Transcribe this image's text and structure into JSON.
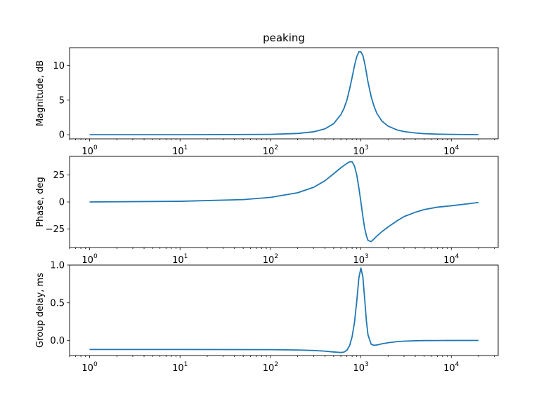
{
  "chart_data": [
    {
      "type": "line",
      "title": "peaking",
      "xlabel": "",
      "ylabel": "Magnitude, dB",
      "xscale": "log",
      "xlim": [
        0.6,
        33000
      ],
      "xticks": [
        1,
        10,
        100,
        1000,
        10000
      ],
      "xtick_labels": [
        {
          "base": "10",
          "exp": "0"
        },
        {
          "base": "10",
          "exp": "1"
        },
        {
          "base": "10",
          "exp": "2"
        },
        {
          "base": "10",
          "exp": "3"
        },
        {
          "base": "10",
          "exp": "4"
        }
      ],
      "ylim": [
        -0.6,
        12.6
      ],
      "yticks": [
        0,
        5,
        10
      ],
      "ytick_labels": [
        "0",
        "5",
        "10"
      ],
      "grid": false,
      "color": "#1f77b4",
      "series": [
        {
          "x": [
            1,
            10,
            100,
            200,
            300,
            400,
            500,
            600,
            650,
            700,
            750,
            800,
            850,
            900,
            950,
            1000,
            1050,
            1100,
            1150,
            1200,
            1300,
            1400,
            1500,
            1700,
            2000,
            2500,
            3000,
            4000,
            5000,
            7000,
            10000,
            15000,
            20000
          ],
          "y": [
            0,
            0,
            0.05,
            0.18,
            0.42,
            0.85,
            1.6,
            2.9,
            3.8,
            5.0,
            6.6,
            8.3,
            10.0,
            11.3,
            12.0,
            12.0,
            11.5,
            10.4,
            9.0,
            7.6,
            5.5,
            4.1,
            3.1,
            2.0,
            1.25,
            0.7,
            0.45,
            0.25,
            0.15,
            0.08,
            0.05,
            0.02,
            0.01
          ]
        }
      ]
    },
    {
      "type": "line",
      "title": "",
      "xlabel": "",
      "ylabel": "Phase, deg",
      "xscale": "log",
      "xlim": [
        0.6,
        33000
      ],
      "xticks": [
        1,
        10,
        100,
        1000,
        10000
      ],
      "xtick_labels": [
        {
          "base": "10",
          "exp": "0"
        },
        {
          "base": "10",
          "exp": "1"
        },
        {
          "base": "10",
          "exp": "2"
        },
        {
          "base": "10",
          "exp": "3"
        },
        {
          "base": "10",
          "exp": "4"
        }
      ],
      "ylim": [
        -42,
        42
      ],
      "yticks": [
        -25,
        0,
        25
      ],
      "ytick_labels": [
        "−25",
        "0",
        "25"
      ],
      "grid": false,
      "color": "#1f77b4",
      "series": [
        {
          "x": [
            1,
            10,
            50,
            100,
            200,
            300,
            400,
            500,
            600,
            700,
            750,
            800,
            850,
            900,
            950,
            1000,
            1050,
            1100,
            1150,
            1200,
            1300,
            1400,
            1500,
            1700,
            2000,
            2500,
            3000,
            4000,
            5000,
            7000,
            10000,
            15000,
            20000
          ],
          "y": [
            0,
            0.6,
            2.2,
            4.2,
            8.5,
            13.5,
            19.5,
            26,
            31.5,
            35.5,
            37,
            37,
            33,
            25,
            13,
            0,
            -13,
            -24,
            -31,
            -35.5,
            -36.5,
            -34,
            -31.5,
            -27.5,
            -23,
            -17.5,
            -13.5,
            -9.5,
            -7,
            -4.8,
            -3.5,
            -1.8,
            -0.5
          ]
        }
      ]
    },
    {
      "type": "line",
      "title": "",
      "xlabel": "",
      "ylabel": "Group delay, ms",
      "xscale": "log",
      "xlim": [
        0.6,
        33000
      ],
      "xticks": [
        1,
        10,
        100,
        1000,
        10000
      ],
      "xtick_labels": [
        {
          "base": "10",
          "exp": "0"
        },
        {
          "base": "10",
          "exp": "1"
        },
        {
          "base": "10",
          "exp": "2"
        },
        {
          "base": "10",
          "exp": "3"
        },
        {
          "base": "10",
          "exp": "4"
        }
      ],
      "ylim": [
        -0.2,
        1.0
      ],
      "yticks": [
        0.0,
        0.5,
        1.0
      ],
      "ytick_labels": [
        "0.0",
        "0.5",
        "1.0"
      ],
      "grid": false,
      "color": "#1f77b4",
      "series": [
        {
          "x": [
            1,
            10,
            100,
            200,
            300,
            400,
            500,
            600,
            650,
            700,
            750,
            800,
            850,
            900,
            950,
            1000,
            1050,
            1100,
            1150,
            1200,
            1300,
            1400,
            1500,
            1700,
            2000,
            2500,
            3000,
            4000,
            5000,
            7000,
            10000,
            15000,
            20000
          ],
          "y": [
            -0.12,
            -0.12,
            -0.122,
            -0.127,
            -0.133,
            -0.142,
            -0.153,
            -0.16,
            -0.155,
            -0.13,
            -0.07,
            0.05,
            0.24,
            0.52,
            0.83,
            0.96,
            0.85,
            0.56,
            0.26,
            0.07,
            -0.05,
            -0.065,
            -0.06,
            -0.045,
            -0.03,
            -0.016,
            -0.009,
            -0.004,
            -0.002,
            -0.001,
            0.0,
            0.0,
            0.0
          ]
        }
      ]
    }
  ]
}
